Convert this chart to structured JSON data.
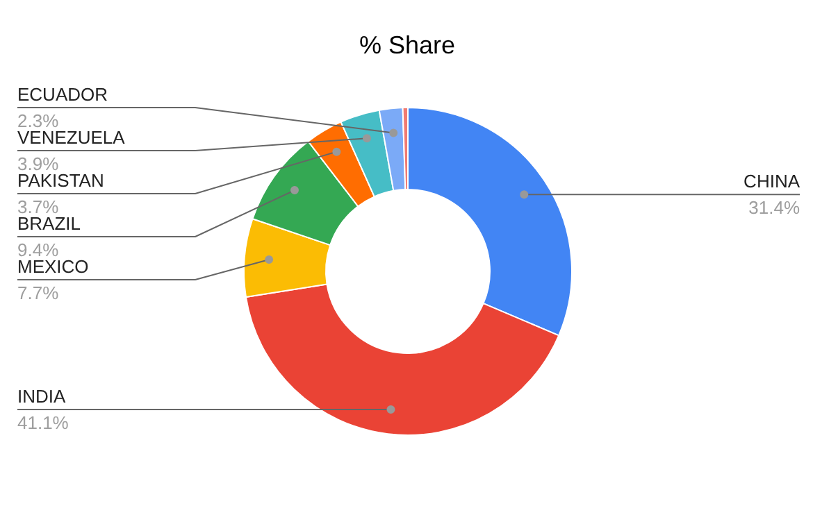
{
  "chart_data": {
    "type": "donut",
    "title": "% Share",
    "categories": [
      "CHINA",
      "INDIA",
      "MEXICO",
      "BRAZIL",
      "PAKISTAN",
      "VENEZUELA",
      "ECUADOR",
      null
    ],
    "values": [
      31.4,
      41.1,
      7.7,
      9.4,
      3.7,
      3.9,
      2.3,
      0.5
    ],
    "colors": [
      "#4285f4",
      "#ea4335",
      "#fbbc04",
      "#34a853",
      "#ff6d01",
      "#46bdc6",
      "#7baaf7",
      "#f07b72"
    ],
    "value_labels": [
      "31.4%",
      "41.1%",
      "7.7%",
      "9.4%",
      "3.7%",
      "3.9%",
      "2.3%",
      null
    ]
  }
}
